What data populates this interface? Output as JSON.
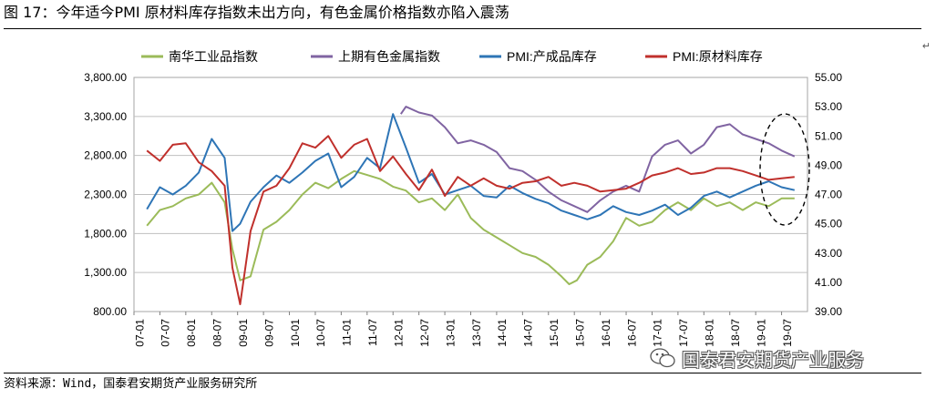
{
  "figure": {
    "title": "图 17：今年适今PMI 原材料库存指数未出方向，有色金属价格指数亦陷入震荡",
    "source": "资料来源：Wind，国泰君安期货产业服务研究所",
    "watermark": "国泰君安期货产业服务",
    "colors": {
      "green": "#9bbb59",
      "purple": "#8064a2",
      "blue": "#2e75b6",
      "red": "#c0302c",
      "grid": "#bfbfbf"
    }
  },
  "chart_data": {
    "type": "line",
    "title": "",
    "x_axis": {
      "ticks": [
        "07-01",
        "07-07",
        "08-01",
        "08-07",
        "09-01",
        "09-07",
        "10-01",
        "10-07",
        "11-01",
        "11-07",
        "12-01",
        "12-07",
        "13-01",
        "13-07",
        "14-01",
        "14-07",
        "15-01",
        "15-07",
        "16-01",
        "16-07",
        "17-01",
        "17-07",
        "18-01",
        "18-07",
        "19-01",
        "19-07"
      ]
    },
    "y_left": {
      "min": 800,
      "max": 3800,
      "ticks": [
        "800.00",
        "1,300.00",
        "1,800.00",
        "2,300.00",
        "2,800.00",
        "3,300.00",
        "3,800.00"
      ]
    },
    "y_right": {
      "min": 39,
      "max": 55,
      "ticks": [
        "39.00",
        "41.00",
        "43.00",
        "45.00",
        "47.00",
        "49.00",
        "51.00",
        "53.00",
        "55.00"
      ]
    },
    "grid": true,
    "legend_position": "top",
    "series": [
      {
        "name": "南华工业品指数",
        "axis": "left",
        "color": "#9bbb59",
        "x": [
          0,
          0.5,
          1,
          1.5,
          2,
          2.5,
          3,
          3.3,
          3.6,
          4,
          4.5,
          5,
          5.5,
          6,
          6.5,
          7,
          7.5,
          8,
          8.5,
          9,
          9.5,
          10,
          10.5,
          11,
          11.5,
          12,
          12.5,
          13,
          13.5,
          14,
          14.5,
          15,
          15.5,
          16,
          16.3,
          16.6,
          17,
          17.5,
          18,
          18.5,
          19,
          19.5,
          20,
          20.5,
          21,
          21.5,
          22,
          22.5,
          23,
          23.5,
          24,
          24.5,
          25
        ],
        "values": [
          1900,
          2100,
          2150,
          2250,
          2300,
          2450,
          2200,
          1600,
          1200,
          1250,
          1850,
          1950,
          2100,
          2300,
          2450,
          2380,
          2500,
          2600,
          2550,
          2500,
          2400,
          2350,
          2200,
          2250,
          2100,
          2300,
          2000,
          1850,
          1750,
          1650,
          1550,
          1500,
          1400,
          1250,
          1150,
          1200,
          1400,
          1500,
          1700,
          2000,
          1900,
          1950,
          2100,
          2200,
          2100,
          2250,
          2150,
          2200,
          2100,
          2200,
          2150,
          2250,
          2250
        ]
      },
      {
        "name": "上期有色金属指数",
        "axis": "right",
        "color": "#8064a2",
        "x": [
          9.8,
          10,
          10.5,
          11,
          11.5,
          12,
          12.5,
          13,
          13.5,
          14,
          14.5,
          15,
          15.5,
          16,
          16.5,
          17,
          17.5,
          18,
          18.5,
          19,
          19.5,
          20,
          20.5,
          21,
          21.5,
          22,
          22.5,
          23,
          23.5,
          24,
          24.5,
          25
        ],
        "values": [
          52.5,
          53,
          52.6,
          52.4,
          51.6,
          50.5,
          50.7,
          50.4,
          49.9,
          48.8,
          48.6,
          48,
          47.2,
          46.6,
          46.2,
          45.8,
          46.6,
          47.2,
          47.6,
          47.2,
          49.6,
          50.4,
          50.7,
          49.8,
          50.4,
          51.6,
          51.8,
          51.1,
          50.8,
          50.5,
          50,
          49.6
        ]
      },
      {
        "name": "PMI:产成品库存",
        "axis": "right",
        "color": "#2e75b6",
        "x": [
          0,
          0.5,
          1,
          1.5,
          2,
          2.5,
          3,
          3.3,
          3.6,
          4,
          4.5,
          5,
          5.5,
          6,
          6.5,
          7,
          7.5,
          8,
          8.5,
          9,
          9.5,
          10,
          10.5,
          11,
          11.5,
          12,
          12.5,
          13,
          13.5,
          14,
          14.5,
          15,
          15.5,
          16,
          16.5,
          17,
          17.5,
          18,
          18.5,
          19,
          19.5,
          20,
          20.5,
          21,
          21.5,
          22,
          22.5,
          23,
          23.5,
          24,
          24.5,
          25
        ],
        "values": [
          46,
          47.5,
          47,
          47.6,
          48.5,
          50.8,
          49.5,
          44.5,
          45,
          46.5,
          47.5,
          48.3,
          47.8,
          48.5,
          49.3,
          49.8,
          47.5,
          48.2,
          49.5,
          48.8,
          52.5,
          50.2,
          47.8,
          48.4,
          47,
          47.3,
          47.6,
          46.9,
          46.8,
          47.6,
          47.1,
          46.7,
          46.4,
          45.9,
          45.6,
          45.3,
          45.6,
          46.2,
          45.8,
          45.6,
          45.9,
          46.3,
          45.6,
          46.1,
          46.9,
          47.2,
          46.8,
          47.2,
          47.6,
          47.9,
          47.5,
          47.3
        ]
      },
      {
        "name": "PMI:原材料库存",
        "axis": "right",
        "color": "#c0302c",
        "x": [
          0,
          0.5,
          1,
          1.5,
          2,
          2.5,
          3,
          3.3,
          3.6,
          4,
          4.5,
          5,
          5.5,
          6,
          6.5,
          7,
          7.5,
          8,
          8.5,
          9,
          9.5,
          10,
          10.5,
          11,
          11.5,
          12,
          12.5,
          13,
          13.5,
          14,
          14.5,
          15,
          15.5,
          16,
          16.5,
          17,
          17.5,
          18,
          18.5,
          19,
          19.5,
          20,
          20.5,
          21,
          21.5,
          22,
          22.5,
          23,
          23.5,
          24,
          24.5,
          25
        ],
        "values": [
          50,
          49.3,
          50.4,
          50.5,
          49.2,
          48.6,
          47.6,
          42,
          39.5,
          44.5,
          47.2,
          47.6,
          48.8,
          50.5,
          50.2,
          51,
          49.5,
          50.4,
          50.8,
          48.6,
          49.6,
          48.4,
          47.3,
          48.7,
          46.9,
          48.2,
          47.6,
          48.1,
          47.6,
          47.4,
          47.8,
          47.9,
          48.2,
          47.6,
          47.8,
          47.6,
          47.2,
          47.3,
          47.4,
          47.8,
          48.3,
          48.5,
          48.8,
          48.4,
          48.5,
          48.8,
          48.8,
          48.6,
          48.3,
          48,
          48.1,
          48.2
        ]
      }
    ]
  }
}
